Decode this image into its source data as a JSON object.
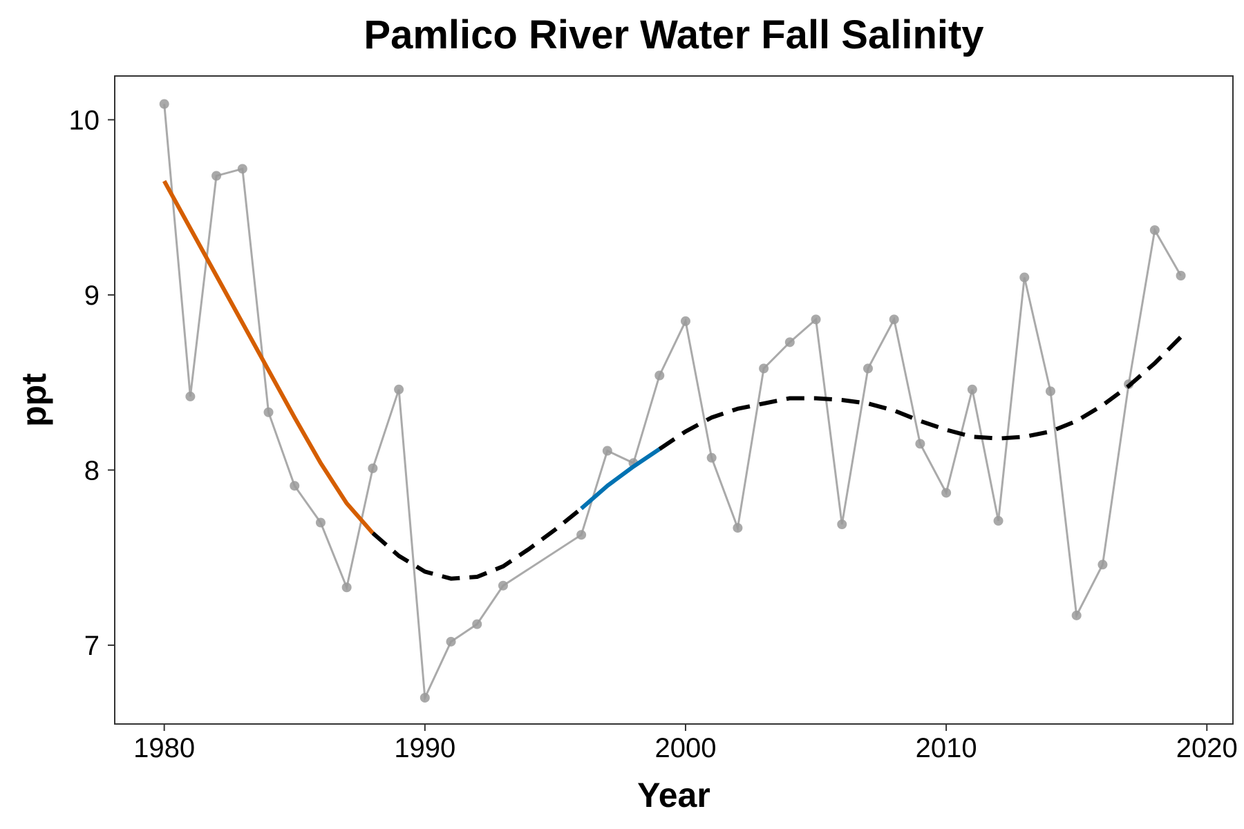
{
  "chart_data": {
    "type": "line",
    "title": "Pamlico River Water Fall Salinity",
    "xlabel": "Year",
    "ylabel": "ppt",
    "xlim": [
      1978.1,
      2021.0
    ],
    "ylim": [
      6.55,
      10.25
    ],
    "x_ticks": [
      1980,
      1990,
      2000,
      2010,
      2020
    ],
    "y_ticks": [
      7,
      8,
      9,
      10
    ],
    "grid": false,
    "legend": "none",
    "series": [
      {
        "kind": "observed",
        "color": "#aaaaaa",
        "points": [
          {
            "x": 1980,
            "y": 10.09
          },
          {
            "x": 1981,
            "y": 8.42
          },
          {
            "x": 1982,
            "y": 9.68
          },
          {
            "x": 1983,
            "y": 9.72
          },
          {
            "x": 1984,
            "y": 8.33
          },
          {
            "x": 1985,
            "y": 7.91
          },
          {
            "x": 1986,
            "y": 7.7
          },
          {
            "x": 1987,
            "y": 7.33
          },
          {
            "x": 1988,
            "y": 8.01
          },
          {
            "x": 1989,
            "y": 8.46
          },
          {
            "x": 1990,
            "y": 6.7
          },
          {
            "x": 1991,
            "y": 7.02
          },
          {
            "x": 1992,
            "y": 7.12
          },
          {
            "x": 1993,
            "y": 7.34
          },
          {
            "x": 1996,
            "y": 7.63
          },
          {
            "x": 1997,
            "y": 8.11
          },
          {
            "x": 1998,
            "y": 8.04
          },
          {
            "x": 1999,
            "y": 8.54
          },
          {
            "x": 2000,
            "y": 8.85
          },
          {
            "x": 2001,
            "y": 8.07
          },
          {
            "x": 2002,
            "y": 7.67
          },
          {
            "x": 2003,
            "y": 8.58
          },
          {
            "x": 2004,
            "y": 8.73
          },
          {
            "x": 2005,
            "y": 8.86
          },
          {
            "x": 2006,
            "y": 7.69
          },
          {
            "x": 2007,
            "y": 8.58
          },
          {
            "x": 2008,
            "y": 8.86
          },
          {
            "x": 2009,
            "y": 8.15
          },
          {
            "x": 2010,
            "y": 7.87
          },
          {
            "x": 2011,
            "y": 8.46
          },
          {
            "x": 2012,
            "y": 7.71
          },
          {
            "x": 2013,
            "y": 9.1
          },
          {
            "x": 2014,
            "y": 8.45
          },
          {
            "x": 2015,
            "y": 7.17
          },
          {
            "x": 2016,
            "y": 7.46
          },
          {
            "x": 2017,
            "y": 8.49
          },
          {
            "x": 2018,
            "y": 9.37
          },
          {
            "x": 2019,
            "y": 9.11
          }
        ]
      },
      {
        "kind": "trend",
        "color": "#000000",
        "points": [
          {
            "x": 1980,
            "y": 9.65
          },
          {
            "x": 1981,
            "y": 9.38
          },
          {
            "x": 1982,
            "y": 9.11
          },
          {
            "x": 1983,
            "y": 8.84
          },
          {
            "x": 1984,
            "y": 8.57
          },
          {
            "x": 1985,
            "y": 8.3
          },
          {
            "x": 1986,
            "y": 8.04
          },
          {
            "x": 1987,
            "y": 7.81
          },
          {
            "x": 1988,
            "y": 7.64
          },
          {
            "x": 1989,
            "y": 7.51
          },
          {
            "x": 1990,
            "y": 7.42
          },
          {
            "x": 1991,
            "y": 7.38
          },
          {
            "x": 1992,
            "y": 7.39
          },
          {
            "x": 1993,
            "y": 7.45
          },
          {
            "x": 1994,
            "y": 7.55
          },
          {
            "x": 1995,
            "y": 7.66
          },
          {
            "x": 1996,
            "y": 7.78
          },
          {
            "x": 1997,
            "y": 7.91
          },
          {
            "x": 1998,
            "y": 8.02
          },
          {
            "x": 1999,
            "y": 8.12
          },
          {
            "x": 2000,
            "y": 8.22
          },
          {
            "x": 2001,
            "y": 8.3
          },
          {
            "x": 2002,
            "y": 8.35
          },
          {
            "x": 2003,
            "y": 8.38
          },
          {
            "x": 2004,
            "y": 8.41
          },
          {
            "x": 2005,
            "y": 8.41
          },
          {
            "x": 2006,
            "y": 8.4
          },
          {
            "x": 2007,
            "y": 8.38
          },
          {
            "x": 2008,
            "y": 8.34
          },
          {
            "x": 2009,
            "y": 8.28
          },
          {
            "x": 2010,
            "y": 8.23
          },
          {
            "x": 2011,
            "y": 8.19
          },
          {
            "x": 2012,
            "y": 8.18
          },
          {
            "x": 2013,
            "y": 8.19
          },
          {
            "x": 2014,
            "y": 8.22
          },
          {
            "x": 2015,
            "y": 8.28
          },
          {
            "x": 2016,
            "y": 8.37
          },
          {
            "x": 2017,
            "y": 8.48
          },
          {
            "x": 2018,
            "y": 8.61
          },
          {
            "x": 2019,
            "y": 8.76
          }
        ],
        "segments": [
          {
            "from": 1980,
            "to": 1988,
            "style": "solid",
            "color": "#d55e00"
          },
          {
            "from": 1988,
            "to": 1996,
            "style": "dashed",
            "color": "#000000"
          },
          {
            "from": 1996,
            "to": 1999,
            "style": "solid",
            "color": "#0072b2"
          },
          {
            "from": 1999,
            "to": 2019,
            "style": "dashed",
            "color": "#000000"
          }
        ]
      }
    ]
  }
}
